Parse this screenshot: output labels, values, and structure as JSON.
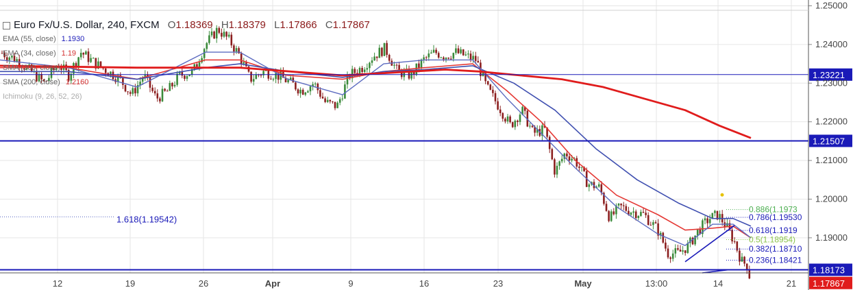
{
  "header": {
    "symbol": "Euro Fx/U.S. Dollar, 240, FXCM",
    "open_label": "O",
    "open": "1.18369",
    "high_label": "H",
    "high": "1.18379",
    "low_label": "L",
    "low": "1.17866",
    "close_label": "C",
    "close": "1.17867"
  },
  "indicators": [
    {
      "label": "EMA (55, close)",
      "value": "1.1930",
      "color": "#1a1ab8"
    },
    {
      "label": "EMA (34, close)",
      "value": "1.19",
      "color": "#d32f2f"
    },
    {
      "label": "SMA (200, close)",
      "value": "",
      "color": "#1a1ab8"
    },
    {
      "label": "SMA (200, close)",
      "value": "1.2160",
      "color": "#d32f2f"
    },
    {
      "label": "Ichimoku (9, 26, 52, 26)",
      "value": "",
      "color": "#888888"
    }
  ],
  "chart_data": {
    "type": "candlestick",
    "title": "Euro Fx/U.S. Dollar, 240, FXCM",
    "ylim": [
      1.1765,
      1.2515
    ],
    "y_ticks": [
      "1.25000",
      "1.24000",
      "1.23000",
      "1.22000",
      "1.21000",
      "1.20000",
      "1.19000"
    ],
    "x_ticks": [
      "12",
      "19",
      "26",
      "Apr",
      "9",
      "16",
      "23",
      "May",
      "13:00",
      "14",
      "21"
    ],
    "grid": true,
    "close_series": [
      [
        0,
        1.238
      ],
      [
        25,
        1.236
      ],
      [
        45,
        1.233
      ],
      [
        65,
        1.23
      ],
      [
        85,
        1.235
      ],
      [
        100,
        1.232
      ],
      [
        118,
        1.238
      ],
      [
        140,
        1.235
      ],
      [
        158,
        1.233
      ],
      [
        175,
        1.231
      ],
      [
        192,
        1.227
      ],
      [
        210,
        1.232
      ],
      [
        228,
        1.226
      ],
      [
        245,
        1.228
      ],
      [
        262,
        1.232
      ],
      [
        282,
        1.233
      ],
      [
        300,
        1.24
      ],
      [
        318,
        1.244
      ],
      [
        335,
        1.241
      ],
      [
        350,
        1.237
      ],
      [
        365,
        1.231
      ],
      [
        385,
        1.233
      ],
      [
        405,
        1.232
      ],
      [
        425,
        1.23
      ],
      [
        440,
        1.228
      ],
      [
        458,
        1.23
      ],
      [
        475,
        1.225
      ],
      [
        492,
        1.224
      ],
      [
        510,
        1.232
      ],
      [
        528,
        1.234
      ],
      [
        545,
        1.237
      ],
      [
        562,
        1.239
      ],
      [
        580,
        1.233
      ],
      [
        600,
        1.232
      ],
      [
        618,
        1.236
      ],
      [
        635,
        1.238
      ],
      [
        650,
        1.237
      ],
      [
        665,
        1.238
      ],
      [
        680,
        1.237
      ],
      [
        695,
        1.236
      ],
      [
        710,
        1.229
      ],
      [
        728,
        1.224
      ],
      [
        745,
        1.219
      ],
      [
        762,
        1.223
      ],
      [
        778,
        1.217
      ],
      [
        795,
        1.218
      ],
      [
        810,
        1.207
      ],
      [
        825,
        1.212
      ],
      [
        840,
        1.21
      ],
      [
        858,
        1.204
      ],
      [
        875,
        1.203
      ],
      [
        890,
        1.195
      ],
      [
        905,
        1.198
      ],
      [
        920,
        1.197
      ],
      [
        940,
        1.196
      ],
      [
        960,
        1.192
      ],
      [
        975,
        1.186
      ],
      [
        990,
        1.186
      ],
      [
        1005,
        1.188
      ],
      [
        1020,
        1.192
      ],
      [
        1035,
        1.195
      ],
      [
        1048,
        1.196
      ],
      [
        1060,
        1.193
      ],
      [
        1072,
        1.189
      ],
      [
        1082,
        1.184
      ],
      [
        1090,
        1.183
      ],
      [
        1096,
        1.17867
      ]
    ],
    "moving_averages": [
      {
        "name": "EMA (34, close)",
        "color": "#e53935",
        "width": 1.6,
        "points": [
          [
            0,
            1.234
          ],
          [
            100,
            1.234
          ],
          [
            200,
            1.231
          ],
          [
            300,
            1.236
          ],
          [
            350,
            1.236
          ],
          [
            420,
            1.232
          ],
          [
            500,
            1.231
          ],
          [
            560,
            1.233
          ],
          [
            620,
            1.234
          ],
          [
            690,
            1.235
          ],
          [
            740,
            1.228
          ],
          [
            790,
            1.22
          ],
          [
            840,
            1.21
          ],
          [
            900,
            1.201
          ],
          [
            960,
            1.196
          ],
          [
            1000,
            1.192
          ],
          [
            1040,
            1.1925
          ],
          [
            1070,
            1.193
          ],
          [
            1096,
            1.19
          ]
        ]
      },
      {
        "name": "EMA (55, close)",
        "color": "#3f4fb0",
        "width": 1.6,
        "points": [
          [
            0,
            1.233
          ],
          [
            100,
            1.233
          ],
          [
            200,
            1.231
          ],
          [
            300,
            1.234
          ],
          [
            350,
            1.235
          ],
          [
            420,
            1.233
          ],
          [
            500,
            1.2315
          ],
          [
            560,
            1.233
          ],
          [
            620,
            1.2335
          ],
          [
            690,
            1.2345
          ],
          [
            750,
            1.23
          ],
          [
            810,
            1.223
          ],
          [
            870,
            1.213
          ],
          [
            930,
            1.205
          ],
          [
            990,
            1.199
          ],
          [
            1040,
            1.195
          ],
          [
            1070,
            1.195
          ],
          [
            1096,
            1.193
          ]
        ]
      },
      {
        "name": "Ichimoku (9, 26, 52, 26)",
        "color": "#5c6bc0",
        "width": 1.4,
        "points": [
          [
            0,
            1.236
          ],
          [
            100,
            1.234
          ],
          [
            200,
            1.229
          ],
          [
            300,
            1.238
          ],
          [
            350,
            1.238
          ],
          [
            420,
            1.231
          ],
          [
            500,
            1.227
          ],
          [
            560,
            1.235
          ],
          [
            620,
            1.236
          ],
          [
            690,
            1.236
          ],
          [
            740,
            1.226
          ],
          [
            790,
            1.217
          ],
          [
            840,
            1.208
          ],
          [
            900,
            1.198
          ],
          [
            960,
            1.191
          ],
          [
            1000,
            1.188
          ],
          [
            1040,
            1.1935
          ],
          [
            1070,
            1.1935
          ],
          [
            1096,
            1.19
          ]
        ]
      },
      {
        "name": "SMA (200, close)",
        "color": "#e01c1c",
        "width": 2.8,
        "points": [
          [
            0,
            1.2345
          ],
          [
            200,
            1.234
          ],
          [
            350,
            1.234
          ],
          [
            500,
            1.232
          ],
          [
            650,
            1.2335
          ],
          [
            700,
            1.233
          ],
          [
            760,
            1.232
          ],
          [
            820,
            1.231
          ],
          [
            880,
            1.229
          ],
          [
            940,
            1.226
          ],
          [
            1000,
            1.223
          ],
          [
            1050,
            1.219
          ],
          [
            1096,
            1.2158
          ]
        ]
      }
    ],
    "horizontal_lines": [
      {
        "value": 1.23221,
        "label": "1.23221",
        "color": "#1a1ab8",
        "width": 1
      },
      {
        "value": 1.21507,
        "label": "1.21507",
        "color": "#1a1ab8",
        "width": 2
      },
      {
        "value": 1.18173,
        "label": "1.18173",
        "color": "#1a1ab8",
        "width": 2
      }
    ],
    "last_price": {
      "value": 1.17867,
      "label": "1.17867",
      "color": "#e01c1c"
    },
    "fib_levels": [
      {
        "label": "0.886(1.1973",
        "value": 1.19732,
        "color": "#4caf50"
      },
      {
        "label": "0.786(1.19530",
        "value": 1.1953,
        "color": "#1a1ab8"
      },
      {
        "label": "0.618(1.1919",
        "value": 1.1919,
        "color": "#1a1ab8"
      },
      {
        "label": "0.5(1.18954)",
        "value": 1.18954,
        "color": "#8bc34a"
      },
      {
        "label": "0.382(1.18710",
        "value": 1.1871,
        "color": "#1a1ab8"
      },
      {
        "label": "0.236(1.18421",
        "value": 1.18421,
        "color": "#1a1ab8"
      }
    ],
    "extension": {
      "label": "1.618(1.19542)",
      "value": 1.19542,
      "color": "#1a1ab8"
    }
  }
}
